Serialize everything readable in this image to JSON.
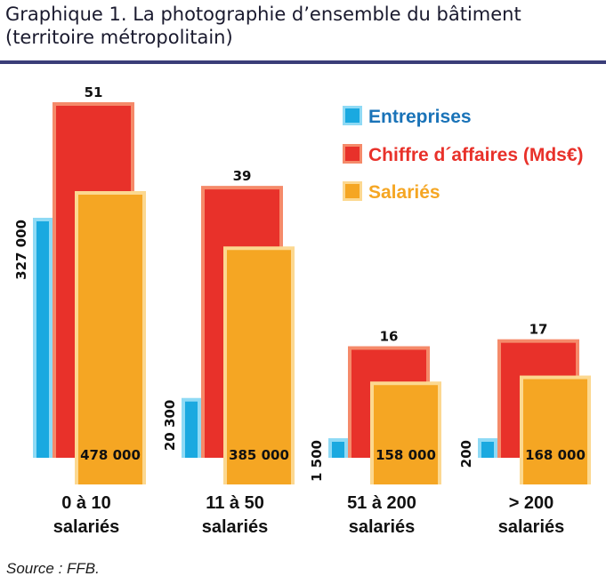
{
  "title_line1": "Graphique 1. La photographie d’ensemble du bâtiment",
  "title_line2": "(territoire métropolitain)",
  "source": "Source : FFB.",
  "chart_data": {
    "type": "bar",
    "categories": [
      [
        "0 à 10",
        "salariés"
      ],
      [
        "11 à 50",
        "salariés"
      ],
      [
        "51 à 200",
        "salariés"
      ],
      [
        "> 200",
        "salariés"
      ]
    ],
    "series": [
      {
        "name": "Entreprises",
        "values": [
          327000,
          20300,
          1500,
          200
        ],
        "labels": [
          "327 000",
          "20 300",
          "1 500",
          "200"
        ],
        "color": "#1aa9e0",
        "light": "#8fdaf5"
      },
      {
        "name": "Chiffre d´affaires (Mds€)",
        "values": [
          51,
          39,
          16,
          17
        ],
        "labels": [
          "51",
          "39",
          "16",
          "17"
        ],
        "color": "#e8312a",
        "light": "#f58a6a"
      },
      {
        "name": "Salariés",
        "values": [
          478000,
          385000,
          158000,
          168000
        ],
        "labels": [
          "478 000",
          "385 000",
          "158 000",
          "168 000"
        ],
        "color": "#f5a623",
        "light": "#fcd890"
      }
    ],
    "legend": "top-right",
    "grid": false,
    "scale": "independent per series"
  }
}
